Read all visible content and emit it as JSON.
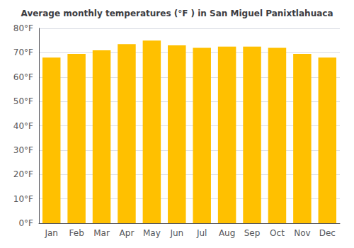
{
  "chart_data": {
    "type": "bar",
    "title": "Average monthly temperatures (°F ) in San Miguel Panixtlahuaca",
    "categories": [
      "Jan",
      "Feb",
      "Mar",
      "Apr",
      "May",
      "Jun",
      "Jul",
      "Aug",
      "Sep",
      "Oct",
      "Nov",
      "Dec"
    ],
    "values": [
      68,
      69.5,
      71,
      73.5,
      75,
      73,
      72,
      72.5,
      72.5,
      72,
      69.5,
      68
    ],
    "color": "#FFC000",
    "ylim": [
      0,
      80
    ],
    "yticks": [
      {
        "value": 0,
        "label": "0°F"
      },
      {
        "value": 10,
        "label": "10°F"
      },
      {
        "value": 20,
        "label": "20°F"
      },
      {
        "value": 30,
        "label": "30°F"
      },
      {
        "value": 40,
        "label": "40°F"
      },
      {
        "value": 50,
        "label": "50°F"
      },
      {
        "value": 60,
        "label": "60°F"
      },
      {
        "value": 70,
        "label": "70°F"
      },
      {
        "value": 80,
        "label": "80°F"
      }
    ],
    "grid": true
  }
}
